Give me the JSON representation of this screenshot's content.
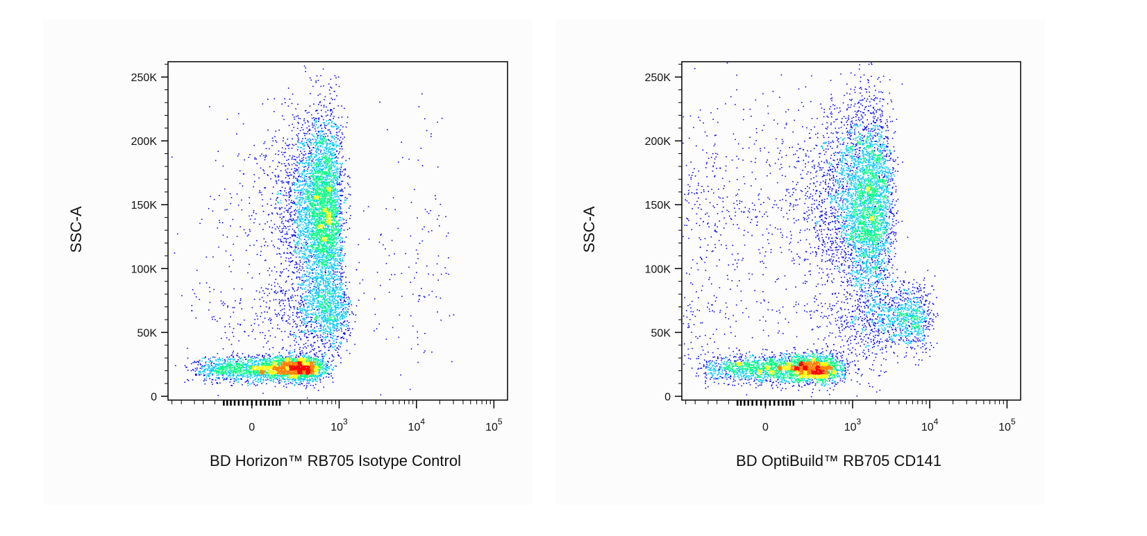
{
  "chart_data": [
    {
      "type": "scatter",
      "subtype": "flow-cytometry-density-dot-plot",
      "xlabel": "BD Horizon™ RB705 Isotype Control",
      "ylabel": "SSC-A",
      "x_scale": "biexponential",
      "x_tick_labels": [
        "0",
        "10",
        "10",
        "10"
      ],
      "x_tick_exponents": [
        "",
        "3",
        "4",
        "5"
      ],
      "x_tick_values": [
        0,
        1000,
        10000,
        100000
      ],
      "y_tick_labels": [
        "0",
        "50K",
        "100K",
        "150K",
        "200K",
        "250K"
      ],
      "y_tick_values": [
        0,
        50000,
        100000,
        150000,
        200000,
        250000
      ],
      "ylim": [
        -3000,
        262000
      ],
      "grid": false,
      "color_scale": [
        "#0000ff",
        "#00c8ff",
        "#00ff80",
        "#ffff00",
        "#ff8000",
        "#ff0000"
      ],
      "populations": [
        {
          "x_center": 160,
          "y_center": 22000,
          "x_spread": 220,
          "y_spread": 5000,
          "weight": 0.34
        },
        {
          "x_center": 560,
          "y_center": 145000,
          "x_spread": 250,
          "y_spread": 38000,
          "weight": 0.52
        },
        {
          "x_center": 600,
          "y_center": 65000,
          "x_spread": 380,
          "y_spread": 14000,
          "weight": 0.12
        },
        {
          "x_center": 8000,
          "y_center": 110000,
          "x_spread": 9000,
          "y_spread": 55000,
          "weight": 0.02
        }
      ]
    },
    {
      "type": "scatter",
      "subtype": "flow-cytometry-density-dot-plot",
      "xlabel": "BD OptiBuild™ RB705 CD141",
      "ylabel": "SSC-A",
      "x_scale": "biexponential",
      "x_tick_labels": [
        "0",
        "10",
        "10",
        "10"
      ],
      "x_tick_exponents": [
        "",
        "3",
        "4",
        "5"
      ],
      "x_tick_values": [
        0,
        1000,
        10000,
        100000
      ],
      "y_tick_labels": [
        "0",
        "50K",
        "100K",
        "150K",
        "200K",
        "250K"
      ],
      "y_tick_values": [
        0,
        50000,
        100000,
        150000,
        200000,
        250000
      ],
      "ylim": [
        -3000,
        262000
      ],
      "grid": false,
      "color_scale": [
        "#0000ff",
        "#00c8ff",
        "#00ff80",
        "#ffff00",
        "#ff8000",
        "#ff0000"
      ],
      "populations": [
        {
          "x_center": 170,
          "y_center": 22000,
          "x_spread": 240,
          "y_spread": 5500,
          "weight": 0.32
        },
        {
          "x_center": 1300,
          "y_center": 150000,
          "x_spread": 900,
          "y_spread": 40000,
          "weight": 0.53
        },
        {
          "x_center": 4000,
          "y_center": 62000,
          "x_spread": 3000,
          "y_spread": 13000,
          "weight": 0.13
        },
        {
          "x_center": 900,
          "y_center": 35000,
          "x_spread": 800,
          "y_spread": 15000,
          "weight": 0.02
        }
      ]
    }
  ]
}
